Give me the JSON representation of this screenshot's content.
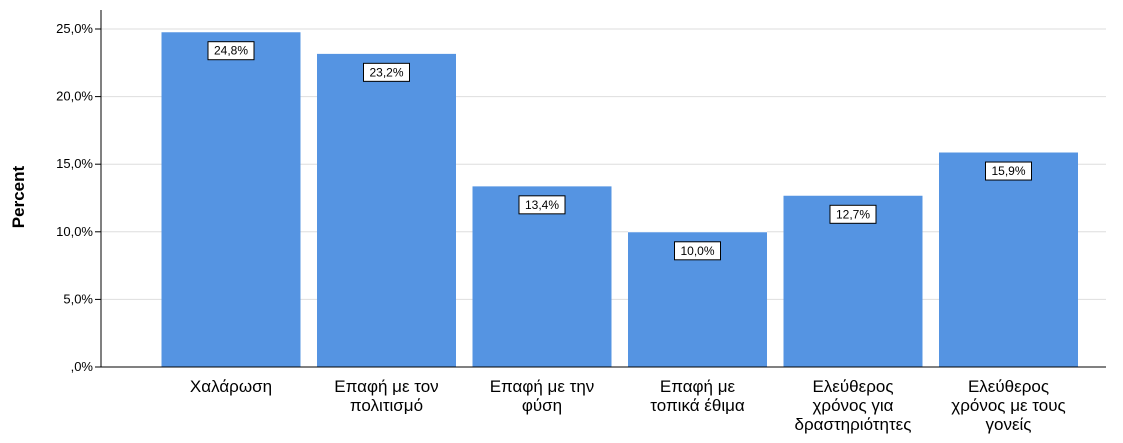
{
  "chart_data": {
    "type": "bar",
    "title": "",
    "xlabel": "",
    "ylabel": "Percent",
    "ylim": [
      0,
      25
    ],
    "yticks": [
      ",0%",
      "5,0%",
      "10,0%",
      "15,0%",
      "20,0%",
      "25,0%"
    ],
    "grid": true,
    "categories": [
      [
        "Χαλάρωση"
      ],
      [
        "Επαφή με τον",
        "πολιτισμό"
      ],
      [
        "Επαφή με την",
        "φύση"
      ],
      [
        "Επαφή με",
        "τοπικά έθιμα"
      ],
      [
        "Ελεύθερος",
        "χρόνος για",
        "δραστηριότητες"
      ],
      [
        "Ελεύθερος",
        "χρόνος με τους",
        "γονείς"
      ]
    ],
    "values": [
      24.8,
      23.2,
      13.4,
      10.0,
      12.7,
      15.9
    ],
    "data_labels": [
      "24,8%",
      "23,2%",
      "13,4%",
      "10,0%",
      "12,7%",
      "15,9%"
    ],
    "bar_color": "#5594e2",
    "grid_color": "#dedede",
    "axis_color": "#000000"
  }
}
